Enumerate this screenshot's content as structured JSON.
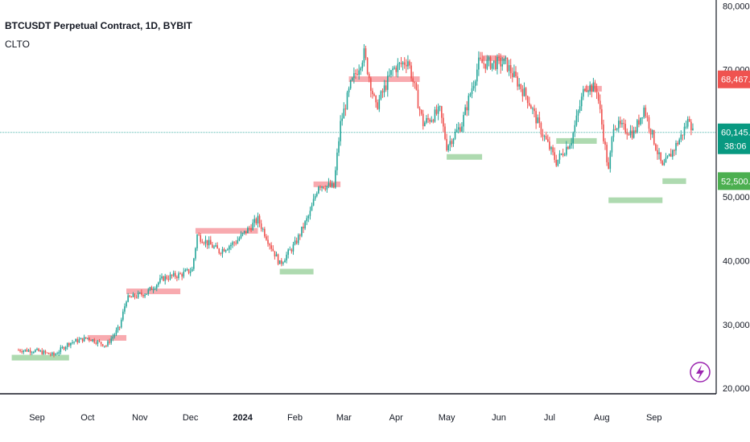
{
  "header": {
    "title": "BTCUSDT Perpetual Contract, 1D, BYBIT",
    "indicator": "CLTO"
  },
  "colors": {
    "up": "#26a69a",
    "down": "#ef5350",
    "high_level": "#f7a1a6",
    "low_level": "#a5d6a7",
    "current_line": "#26a69a",
    "red_tag": "#ef5350",
    "teal_tag": "#089981",
    "green_tag": "#4caf50",
    "axis_line": "#131722",
    "flash_icon": "#9c27b0"
  },
  "chart_data": {
    "type": "candlestick",
    "title": "BTCUSDT Perpetual Contract, 1D, BYBIT",
    "ylim": [
      20000,
      80000
    ],
    "y_ticks": [
      "20,000.0",
      "30,000.0",
      "40,000.0",
      "50,000.0",
      "60,000.0",
      "70,000.0",
      "80,000.0"
    ],
    "x_ticks": [
      "Sep",
      "Oct",
      "Nov",
      "Dec",
      "2024",
      "Feb",
      "Mar",
      "Apr",
      "May",
      "Jun",
      "Jul",
      "Aug",
      "Sep"
    ],
    "grid": false,
    "price_anchors": [
      [
        "2023-08-21",
        26000
      ],
      [
        "2023-08-31",
        25900
      ],
      [
        "2023-09-11",
        25200
      ],
      [
        "2023-09-20",
        27100
      ],
      [
        "2023-10-01",
        27900
      ],
      [
        "2023-10-12",
        26700
      ],
      [
        "2023-10-20",
        29600
      ],
      [
        "2023-10-24",
        34000
      ],
      [
        "2023-11-05",
        35000
      ],
      [
        "2023-11-15",
        37300
      ],
      [
        "2023-11-25",
        37800
      ],
      [
        "2023-12-02",
        38600
      ],
      [
        "2023-12-05",
        44000
      ],
      [
        "2023-12-18",
        41500
      ],
      [
        "2023-12-28",
        43000
      ],
      [
        "2024-01-10",
        46500
      ],
      [
        "2024-01-23",
        39500
      ],
      [
        "2024-02-01",
        42600
      ],
      [
        "2024-02-10",
        47500
      ],
      [
        "2024-02-15",
        52000
      ],
      [
        "2024-02-24",
        51500
      ],
      [
        "2024-02-28",
        61500
      ],
      [
        "2024-03-05",
        67500
      ],
      [
        "2024-03-13",
        72500
      ],
      [
        "2024-03-20",
        64000
      ],
      [
        "2024-03-30",
        70000
      ],
      [
        "2024-04-08",
        71500
      ],
      [
        "2024-04-17",
        61500
      ],
      [
        "2024-04-27",
        63500
      ],
      [
        "2024-05-01",
        58000
      ],
      [
        "2024-05-10",
        61500
      ],
      [
        "2024-05-20",
        71000
      ],
      [
        "2024-06-05",
        71000
      ],
      [
        "2024-06-18",
        65500
      ],
      [
        "2024-06-25",
        61000
      ],
      [
        "2024-07-05",
        55500
      ],
      [
        "2024-07-14",
        59000
      ],
      [
        "2024-07-22",
        67500
      ],
      [
        "2024-07-29",
        67000
      ],
      [
        "2024-08-05",
        54000
      ],
      [
        "2024-08-08",
        61500
      ],
      [
        "2024-08-20",
        60000
      ],
      [
        "2024-08-26",
        64000
      ],
      [
        "2024-09-06",
        54500
      ],
      [
        "2024-09-17",
        59500
      ],
      [
        "2024-09-22",
        62500
      ],
      [
        "2024-09-24",
        60146
      ]
    ],
    "high_levels": [
      {
        "from": "2023-10-01",
        "to": "2023-10-24",
        "value": 27900
      },
      {
        "from": "2023-10-24",
        "to": "2023-11-25",
        "value": 35200
      },
      {
        "from": "2023-12-04",
        "to": "2024-01-10",
        "value": 44700
      },
      {
        "from": "2024-02-12",
        "to": "2024-02-28",
        "value": 52000
      },
      {
        "from": "2024-03-04",
        "to": "2024-04-15",
        "value": 68500
      },
      {
        "from": "2024-05-22",
        "to": "2024-06-05",
        "value": 71800
      },
      {
        "from": "2024-07-22",
        "to": "2024-08-01",
        "value": 67000
      }
    ],
    "low_levels": [
      {
        "from": "2023-08-17",
        "to": "2023-09-20",
        "value": 24800
      },
      {
        "from": "2024-01-23",
        "to": "2024-02-12",
        "value": 38300
      },
      {
        "from": "2024-05-01",
        "to": "2024-05-22",
        "value": 56300
      },
      {
        "from": "2024-07-05",
        "to": "2024-07-29",
        "value": 58800
      },
      {
        "from": "2024-08-05",
        "to": "2024-09-06",
        "value": 49500
      },
      {
        "from": "2024-09-06",
        "to": "2024-09-20",
        "value": 52500
      }
    ],
    "current_price": 60145.9,
    "price_tags": [
      {
        "label": "68,467.9",
        "value": 68467.9,
        "kind": "red"
      },
      {
        "label": "60,145.9",
        "value": 60145.9,
        "kind": "teal",
        "sub": "38:06"
      },
      {
        "label": "52,500.2",
        "value": 52500.2,
        "kind": "green"
      }
    ]
  }
}
